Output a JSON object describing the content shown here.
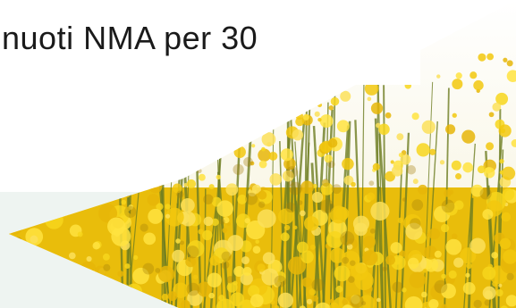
{
  "slide": {
    "line_visible": "nuoti NMA per 30",
    "line_cut_top": "",
    "image": "field-of-yellow-rapeseed-flowers",
    "colors": {
      "text": "#1a1a1a",
      "flower_yellow": "#f2cf10",
      "flower_stem": "#6e7e22",
      "pale_band": "#eef4f1"
    }
  }
}
